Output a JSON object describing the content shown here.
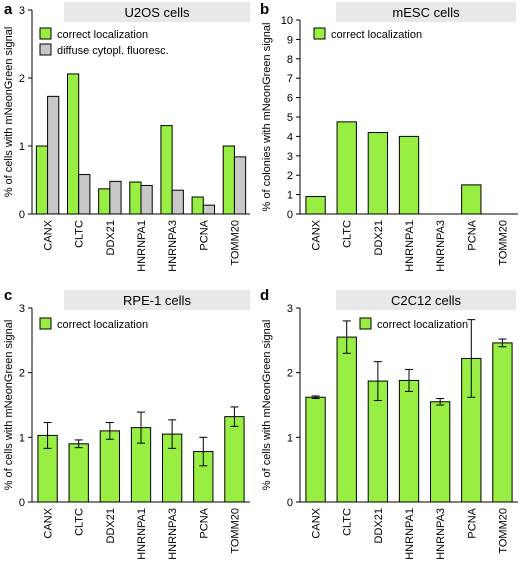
{
  "colors": {
    "correct": "#99ee44",
    "diffuse": "#c8c8c8",
    "title_box": "#e8e8e8",
    "bar_stroke": "#000000"
  },
  "chart_data": [
    {
      "panel": "a",
      "title": "U2OS cells",
      "type": "bar",
      "ylabel": "% of cells with mNeonGreen signal",
      "ylim": [
        0,
        3
      ],
      "yticks": [
        "0",
        "1",
        "2",
        "3"
      ],
      "categories": [
        "CANX",
        "CLTC",
        "DDX21",
        "HNRNPA1",
        "HNRNPA3",
        "PCNA",
        "TOMM20"
      ],
      "series": [
        {
          "name": "correct localization",
          "color": "correct",
          "values": [
            1.0,
            2.06,
            0.37,
            0.47,
            1.3,
            0.25,
            1.0
          ],
          "errors": null
        },
        {
          "name": "diffuse cytopl. fluoresc.",
          "color": "diffuse",
          "values": [
            1.73,
            0.58,
            0.48,
            0.42,
            0.35,
            0.13,
            0.84
          ],
          "errors": null
        }
      ]
    },
    {
      "panel": "b",
      "title": "mESC cells",
      "type": "bar",
      "ylabel": "% of colonies with mNeonGreen signal",
      "ylim": [
        0,
        10
      ],
      "yticks": [
        "0",
        "1",
        "2",
        "3",
        "4",
        "5",
        "6",
        "7",
        "8",
        "9",
        "10"
      ],
      "categories": [
        "CANX",
        "CLTC",
        "DDX21",
        "HNRNPA1",
        "HNRNPA3",
        "PCNA",
        "TOMM20"
      ],
      "series": [
        {
          "name": "correct localization",
          "color": "correct",
          "values": [
            0.9,
            4.75,
            4.2,
            4.0,
            0,
            1.5,
            0
          ],
          "errors": null
        }
      ]
    },
    {
      "panel": "c",
      "title": "RPE-1 cells",
      "type": "bar",
      "ylabel": "% of cells with mNeonGreen signal",
      "ylim": [
        0,
        3
      ],
      "yticks": [
        "0",
        "1",
        "2",
        "3"
      ],
      "categories": [
        "CANX",
        "CLTC",
        "DDX21",
        "HNRNPA1",
        "HNRNPA3",
        "PCNA",
        "TOMM20"
      ],
      "series": [
        {
          "name": "correct localization",
          "color": "correct",
          "values": [
            1.03,
            0.9,
            1.1,
            1.15,
            1.05,
            0.78,
            1.32
          ],
          "errors": [
            0.2,
            0.06,
            0.13,
            0.24,
            0.22,
            0.22,
            0.15
          ]
        }
      ]
    },
    {
      "panel": "d",
      "title": "C2C12 cells",
      "type": "bar",
      "ylabel": "% of cells with mNeonGreen signal",
      "ylim": [
        0,
        3
      ],
      "yticks": [
        "0",
        "1",
        "2",
        "3"
      ],
      "categories": [
        "CANX",
        "CLTC",
        "DDX21",
        "HNRNPA1",
        "HNRNPA3",
        "PCNA",
        "TOMM20"
      ],
      "series": [
        {
          "name": "correct localization",
          "color": "correct",
          "values": [
            1.62,
            2.55,
            1.87,
            1.88,
            1.55,
            2.22,
            2.46
          ],
          "errors": [
            0.02,
            0.25,
            0.3,
            0.17,
            0.05,
            0.6,
            0.06
          ]
        }
      ]
    }
  ]
}
